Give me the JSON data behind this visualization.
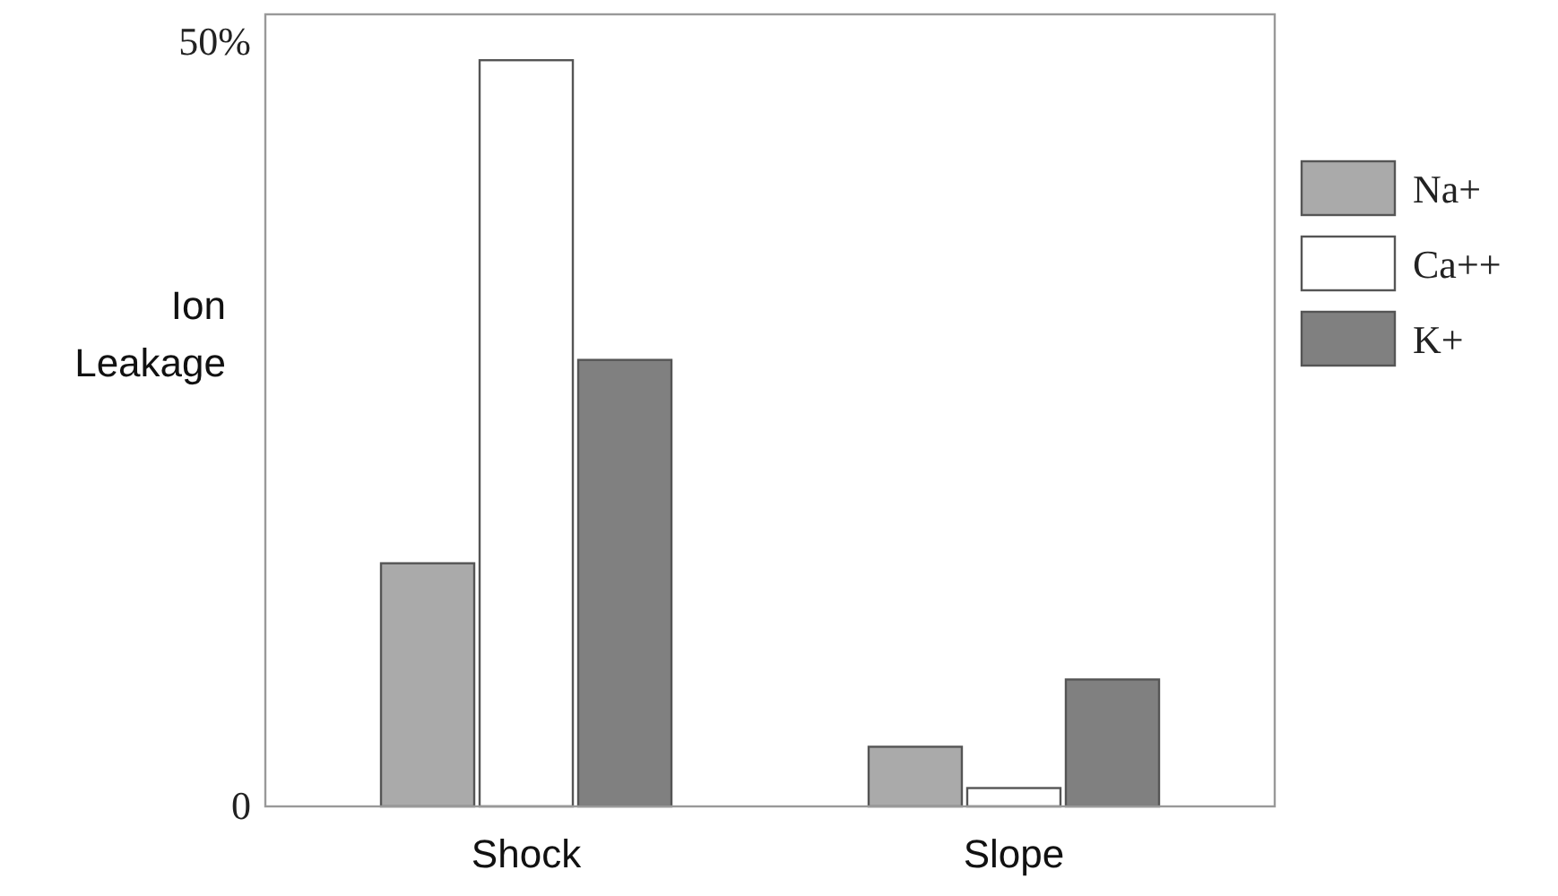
{
  "chart_data": {
    "type": "bar",
    "ylabel": "Ion Leakage",
    "categories": [
      "Shock",
      "Slope"
    ],
    "series": [
      {
        "name": "Na+",
        "color": "#aaaaaa",
        "values": [
          15.9,
          3.9
        ]
      },
      {
        "name": "Ca++",
        "color": "#ffffff",
        "values": [
          48.8,
          1.2
        ]
      },
      {
        "name": "K+",
        "color": "#808080",
        "values": [
          29.2,
          8.3
        ]
      }
    ],
    "ylim": [
      0,
      51.8
    ],
    "yticks": [
      0,
      {
        "value": 50,
        "label": "50%"
      }
    ],
    "grid": false,
    "legend": "right"
  }
}
